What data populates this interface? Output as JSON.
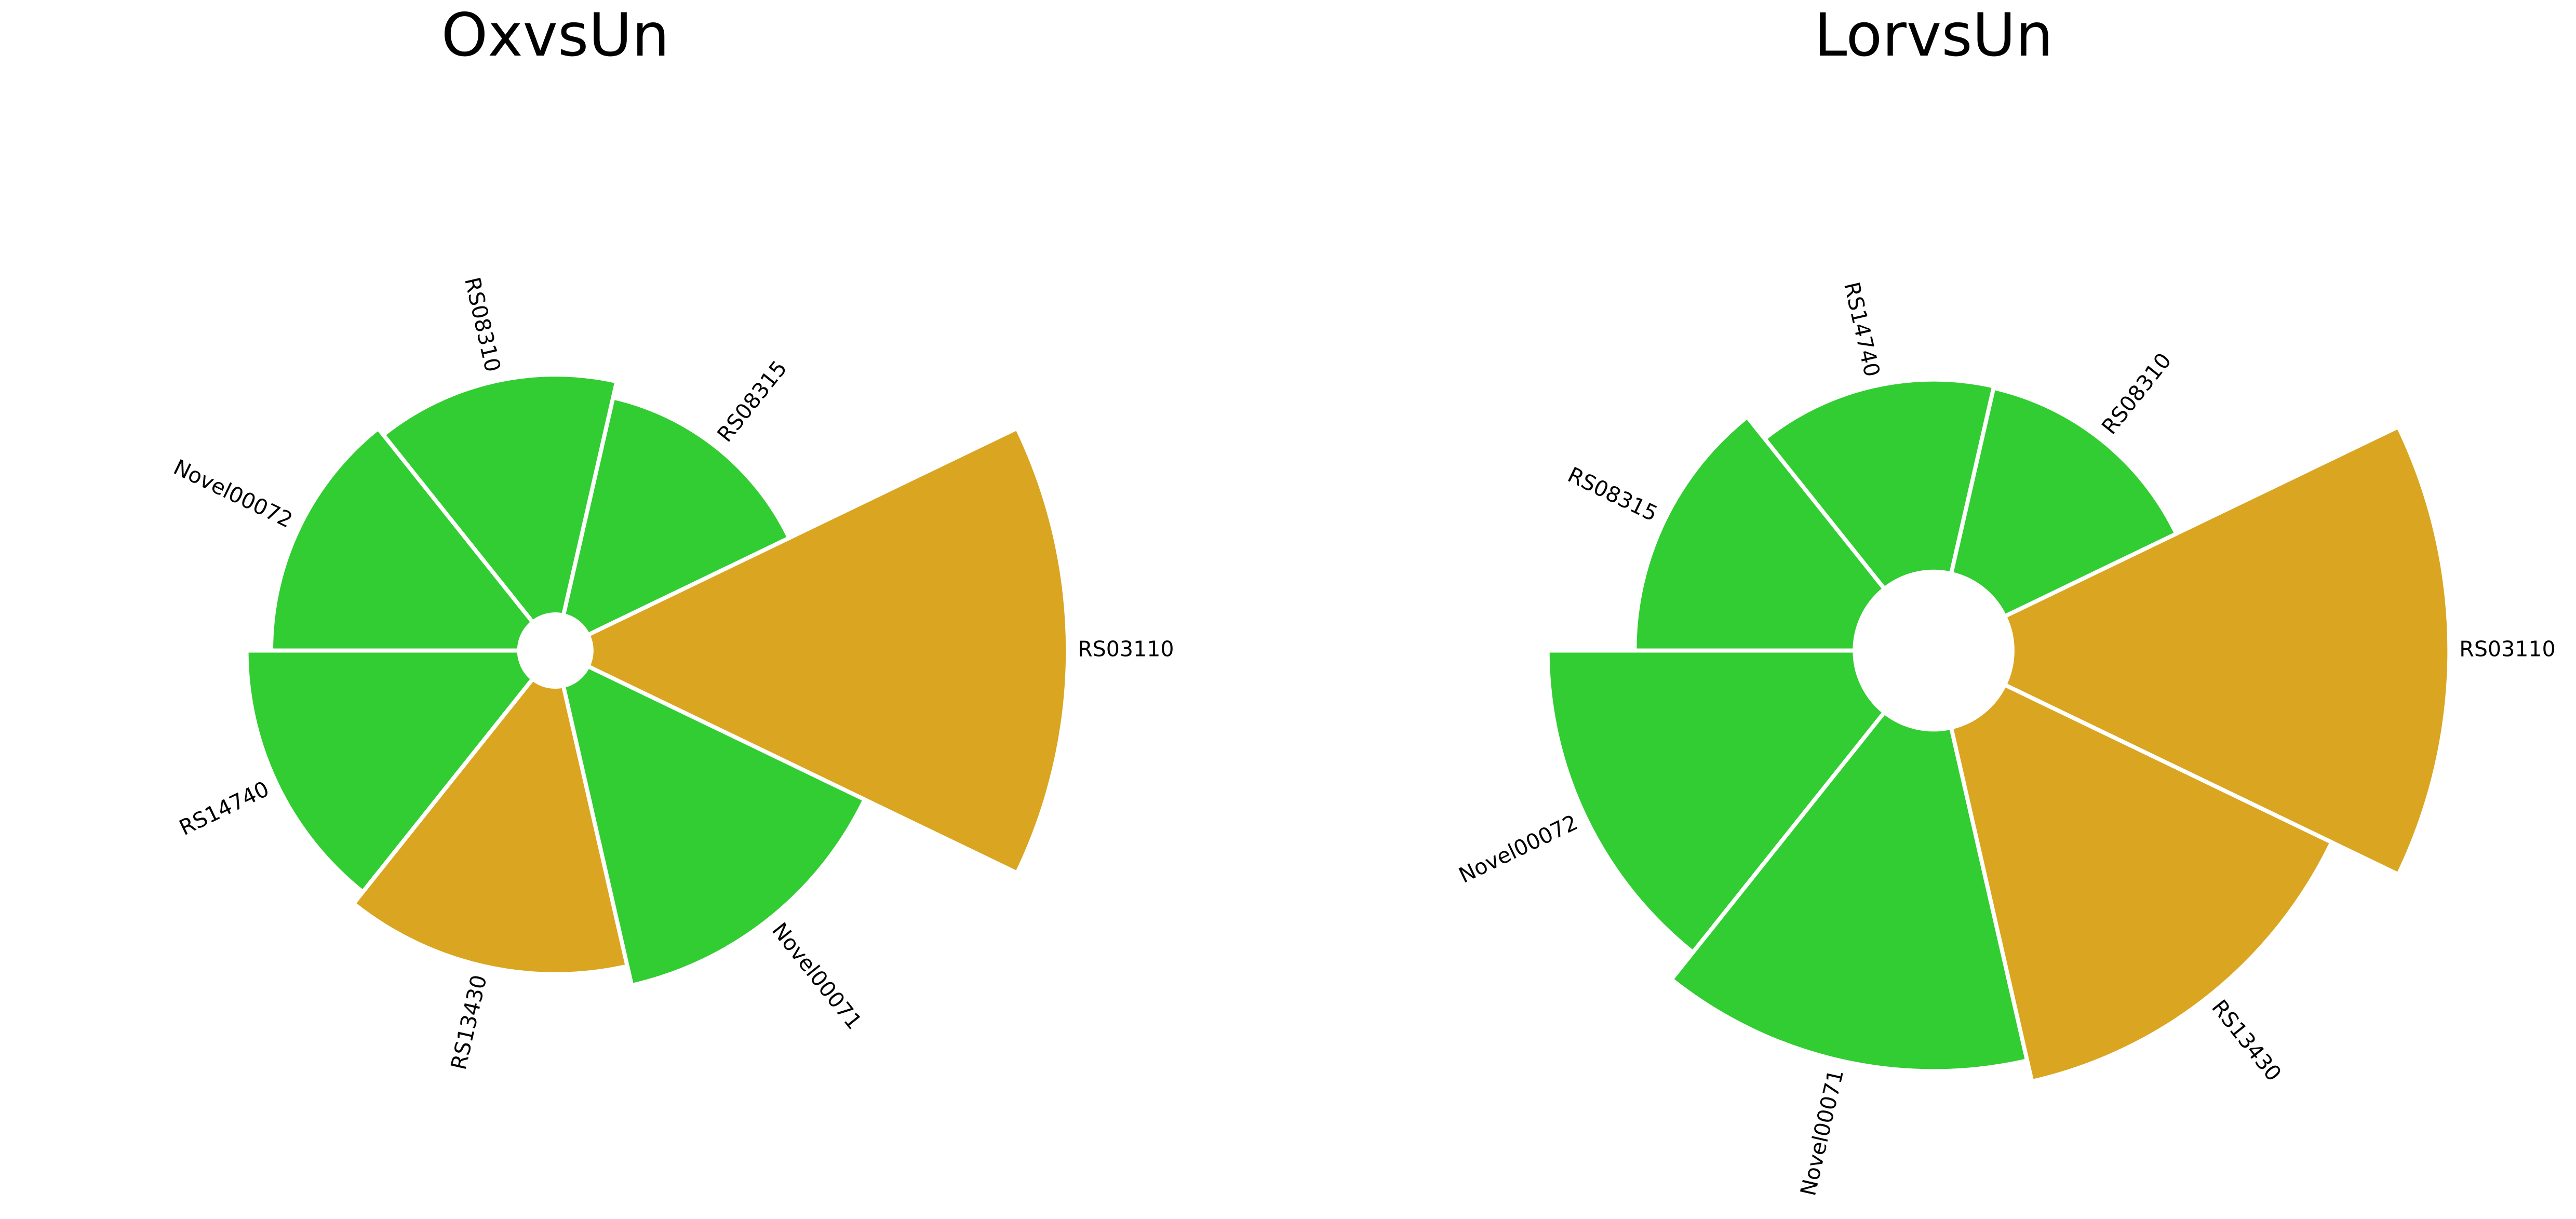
{
  "chart_data": [
    {
      "type": "polar_bar",
      "title": "OxvsUn",
      "categories": [
        "RS03110",
        "RS08315",
        "RS08310",
        "Novel00072",
        "RS14740",
        "RS13430",
        "Novel00071"
      ],
      "values": [
        290,
        136,
        146,
        151,
        166,
        175,
        187
      ],
      "colors": [
        "#DAA520",
        "#32CD32",
        "#32CD32",
        "#32CD32",
        "#32CD32",
        "#DAA520",
        "#32CD32"
      ]
    },
    {
      "type": "polar_bar",
      "title": "LorvsUn",
      "categories": [
        "RS03110",
        "RS08310",
        "RS14740",
        "RS08315",
        "Novel00072",
        "Novel00071",
        "RS13430"
      ],
      "values": [
        266,
        116,
        117,
        134,
        187,
        208,
        221
      ],
      "colors": [
        "#DAA520",
        "#32CD32",
        "#32CD32",
        "#32CD32",
        "#32CD32",
        "#32CD32",
        "#DAA520"
      ]
    }
  ]
}
